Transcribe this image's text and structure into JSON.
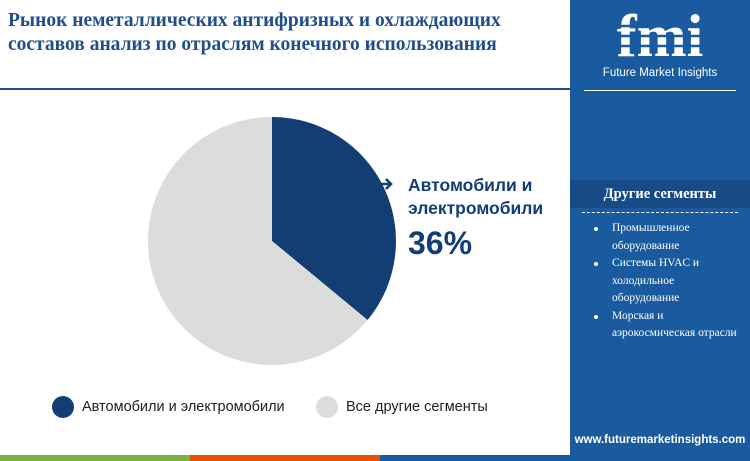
{
  "header": {
    "title_line1": "Рынок неметаллических антифризных и охлаждающих",
    "title_line2": "составов анализ по отраслям конечного использования"
  },
  "brand": {
    "logo_text": "fmi",
    "tagline": "Future Market Insights",
    "url": "www.futuremarketinsights.com"
  },
  "side_panel": {
    "title": "Другие сегменты",
    "items": [
      "Промышленное оборудование",
      "Системы HVAC и холодильное оборудование",
      "Морская и аэрокосмическая отрасли"
    ]
  },
  "callout": {
    "label_line1": "Автомобили и",
    "label_line2": "электромобили",
    "value": "36%"
  },
  "chart_data": {
    "type": "pie",
    "title": "",
    "slices": [
      {
        "label": "Автомобили и электромобили",
        "value": 36,
        "color": "#123e74"
      },
      {
        "label": "Все другие сегменты",
        "value": 64,
        "color": "#dcdcdc"
      }
    ],
    "start_angle_deg": 0,
    "direction": "clockwise",
    "legend_position": "bottom"
  },
  "colors": {
    "title": "#1f4e8c",
    "side_bg": "#1a5a9e",
    "panel_head": "#164b85",
    "bar_segments": [
      "#7bb342",
      "#e65100",
      "#1a5a9e"
    ]
  }
}
